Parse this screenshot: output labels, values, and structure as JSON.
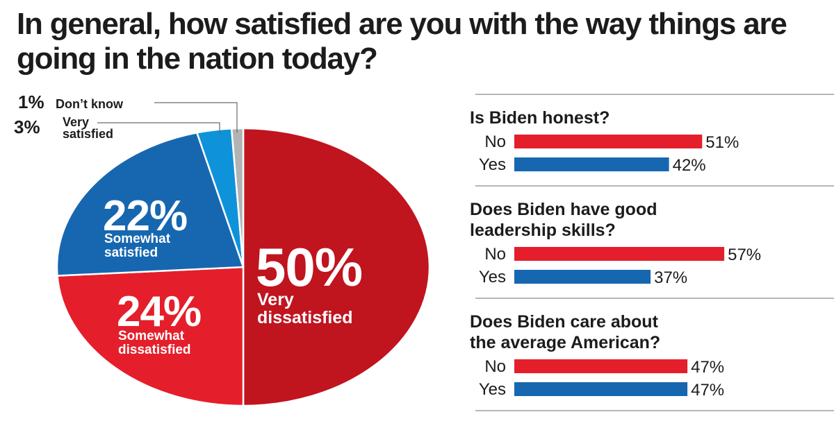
{
  "title": "In general, how satisfied are you with the way things are going in the nation today?",
  "colors": {
    "very_dissatisfied": "#c0141f",
    "somewhat_dissatisfied": "#e41f2b",
    "somewhat_satisfied": "#1667b0",
    "very_satisfied": "#0e93db",
    "dont_know": "#b3b3b3",
    "bar_no": "#e41f2b",
    "bar_yes": "#1667b0"
  },
  "chart_data": [
    {
      "type": "pie",
      "title": "In general, how satisfied are you with the way things are going in the nation today?",
      "slices": [
        {
          "key": "very_dissatisfied",
          "pct_label": "50%",
          "label_lines": [
            "Very",
            "dissatisfied"
          ],
          "value": 50
        },
        {
          "key": "somewhat_dissatisfied",
          "pct_label": "24%",
          "label_lines": [
            "Somewhat",
            "dissatisfied"
          ],
          "value": 24
        },
        {
          "key": "somewhat_satisfied",
          "pct_label": "22%",
          "label_lines": [
            "Somewhat",
            "satisfied"
          ],
          "value": 22
        },
        {
          "key": "very_satisfied",
          "pct_label": "3%",
          "label_lines": [
            "Very",
            "satisfied"
          ],
          "value": 3
        },
        {
          "key": "dont_know",
          "pct_label": "1%",
          "label_lines": [
            "Don’t know"
          ],
          "value": 1
        }
      ]
    },
    {
      "type": "bar",
      "orientation": "horizontal",
      "xlim": [
        0,
        60
      ],
      "questions": [
        {
          "question_lines": [
            "Is Biden honest?"
          ],
          "bars": [
            {
              "category": "No",
              "value": 51,
              "label": "51%"
            },
            {
              "category": "Yes",
              "value": 42,
              "label": "42%"
            }
          ]
        },
        {
          "question_lines": [
            "Does Biden have good",
            "leadership skills?"
          ],
          "bars": [
            {
              "category": "No",
              "value": 57,
              "label": "57%"
            },
            {
              "category": "Yes",
              "value": 37,
              "label": "37%"
            }
          ]
        },
        {
          "question_lines": [
            "Does Biden care about",
            "the average American?"
          ],
          "bars": [
            {
              "category": "No",
              "value": 47,
              "label": "47%"
            },
            {
              "category": "Yes",
              "value": 47,
              "label": "47%"
            }
          ]
        }
      ]
    }
  ]
}
